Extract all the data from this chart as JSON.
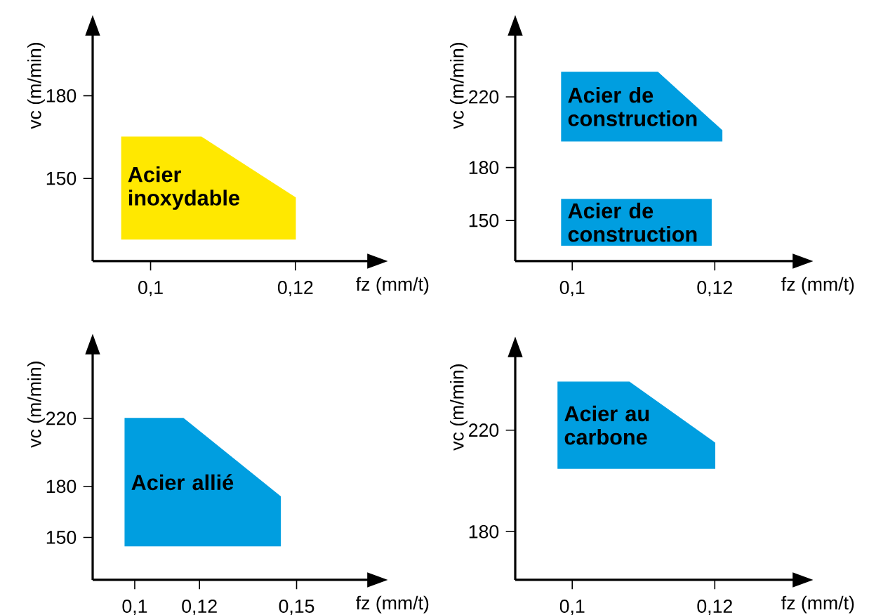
{
  "chart_data": [
    {
      "type": "area",
      "xlabel": "fz (mm/t)",
      "ylabel": "vc (m/min)",
      "xlim": [
        0.092,
        0.13
      ],
      "ylim": [
        120,
        202
      ],
      "xticks": [
        {
          "value": 0.1,
          "label": "0,1"
        },
        {
          "value": 0.12,
          "label": "0,12"
        }
      ],
      "yticks": [
        150,
        180
      ],
      "series": [
        {
          "name": "Acier inoxydable",
          "color": "#ffe800",
          "x": [
            0.096,
            0.107,
            0.12,
            0.12,
            0.096
          ],
          "values": [
            165,
            165,
            143,
            128,
            128
          ]
        }
      ]
    },
    {
      "type": "area",
      "xlabel": "fz (mm/t)",
      "ylabel": "vc (m/min)",
      "xlim": [
        0.092,
        0.131
      ],
      "ylim": [
        127,
        255
      ],
      "xticks": [
        {
          "value": 0.1,
          "label": "0,1"
        },
        {
          "value": 0.12,
          "label": "0,12"
        }
      ],
      "yticks": [
        150,
        180,
        220
      ],
      "series": [
        {
          "name": "Acier de construction",
          "color": "#009ee0",
          "x": [
            0.0985,
            0.112,
            0.121,
            0.121,
            0.0985,
            null,
            0.0985,
            0.1195,
            0.1195,
            0.0985
          ],
          "values": [
            234,
            234,
            201,
            195,
            195,
            null,
            162,
            162,
            136,
            136
          ]
        }
      ]
    },
    {
      "type": "area",
      "xlabel": "fz (mm/t)",
      "ylabel": "vc (m/min)",
      "xlim": [
        0.087,
        0.172
      ],
      "ylim": [
        125,
        258
      ],
      "xticks": [
        {
          "value": 0.1,
          "label": "0,1"
        },
        {
          "value": 0.12,
          "label": "0,12"
        },
        {
          "value": 0.15,
          "label": "0,15"
        }
      ],
      "yticks": [
        150,
        180,
        220
      ],
      "series": [
        {
          "name": "Acier allié",
          "color": "#009ee0",
          "x": [
            0.097,
            0.115,
            0.145,
            0.145,
            0.097
          ],
          "values": [
            220,
            220,
            174,
            145,
            145
          ]
        }
      ]
    },
    {
      "type": "area",
      "xlabel": "fz (mm/t)",
      "ylabel": "vc (m/min)",
      "xlim": [
        0.092,
        0.131
      ],
      "ylim": [
        161,
        249
      ],
      "xticks": [
        {
          "value": 0.1,
          "label": "0,1"
        },
        {
          "value": 0.12,
          "label": "0,12"
        }
      ],
      "yticks": [
        180,
        220
      ],
      "series": [
        {
          "name": "Acier au carbone",
          "color": "#009ee0",
          "x": [
            0.098,
            0.108,
            0.12,
            0.12,
            0.098
          ],
          "values": [
            239,
            239,
            215,
            205,
            205
          ]
        }
      ]
    }
  ]
}
